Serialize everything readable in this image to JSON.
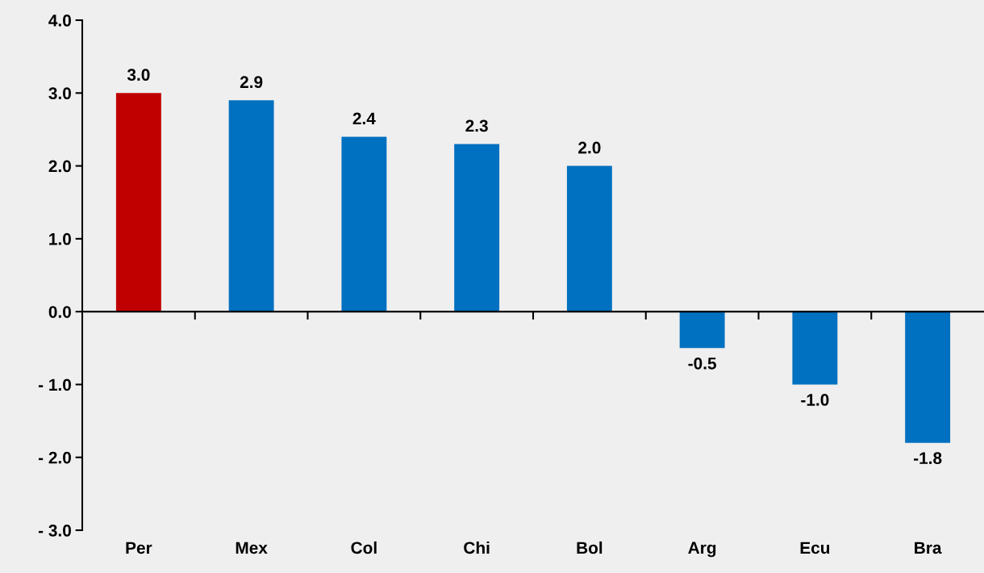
{
  "chart_data": {
    "type": "bar",
    "categories": [
      "Per",
      "Mex",
      "Col",
      "Chi",
      "Bol",
      "Arg",
      "Ecu",
      "Bra"
    ],
    "values": [
      3.0,
      2.9,
      2.4,
      2.3,
      2.0,
      -0.5,
      -1.0,
      -1.8
    ],
    "colors": [
      "#c00000",
      "#0070c0",
      "#0070c0",
      "#0070c0",
      "#0070c0",
      "#0070c0",
      "#0070c0",
      "#0070c0"
    ],
    "value_labels": [
      "3.0",
      "2.9",
      "2.4",
      "2.3",
      "2.0",
      "-0.5",
      "-1.0",
      "-1.8"
    ],
    "ylim": [
      -3,
      4
    ],
    "yticks": [
      {
        "value": -3,
        "label": "- 3.0"
      },
      {
        "value": -2,
        "label": "- 2.0"
      },
      {
        "value": -1,
        "label": "- 1.0"
      },
      {
        "value": 0,
        "label": "0.0"
      },
      {
        "value": 1,
        "label": "1.0"
      },
      {
        "value": 2,
        "label": "2.0"
      },
      {
        "value": 3,
        "label": "3.0"
      },
      {
        "value": 4,
        "label": "4.0"
      }
    ],
    "legend": false
  }
}
